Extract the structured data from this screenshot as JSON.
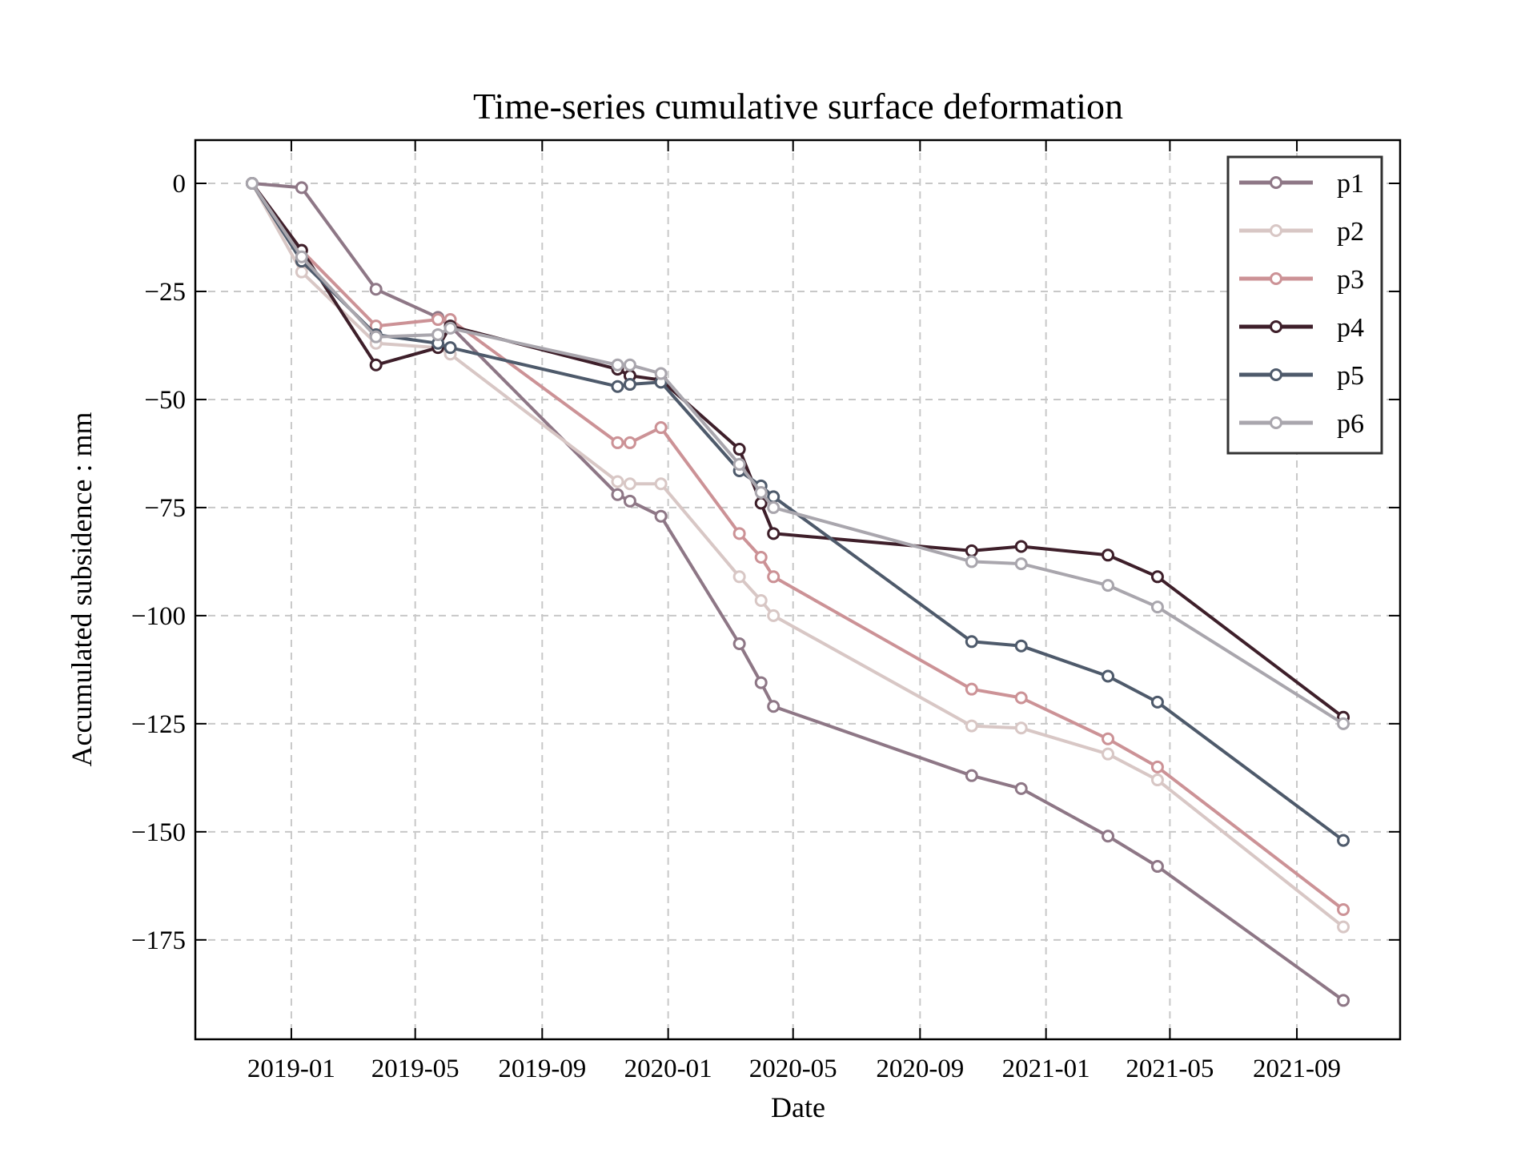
{
  "chart_data": {
    "type": "line",
    "title": "Time-series cumulative surface deformation",
    "xlabel": "Date",
    "ylabel": "Accumulated subsidence : mm",
    "x": [
      "2018-11-24",
      "2019-01-11",
      "2019-03-24",
      "2019-05-23",
      "2019-06-04",
      "2019-11-13",
      "2019-11-25",
      "2019-12-25",
      "2020-03-10",
      "2020-03-31",
      "2020-04-12",
      "2020-10-21",
      "2020-12-08",
      "2021-03-02",
      "2021-04-19",
      "2021-10-16"
    ],
    "xlim": [
      "2018-09-30",
      "2021-12-10"
    ],
    "xticks": [
      "2019-01",
      "2019-05",
      "2019-09",
      "2020-01",
      "2020-05",
      "2020-09",
      "2021-01",
      "2021-05",
      "2021-09"
    ],
    "ylim": [
      -198,
      10
    ],
    "yticks": [
      0,
      -25,
      -50,
      -75,
      -100,
      -125,
      -150,
      -175
    ],
    "ytick_labels": [
      "0",
      "−25",
      "−50",
      "−75",
      "−100",
      "−125",
      "−150",
      "−175"
    ],
    "grid": true,
    "legend_position": "top-right",
    "series": [
      {
        "name": "p1",
        "color": "#8e7786",
        "values": [
          0,
          -1,
          -24.5,
          -31,
          -33,
          -72,
          -73.5,
          -77,
          -106.5,
          -115.5,
          -121,
          -137,
          -140,
          -151,
          -158,
          -189
        ]
      },
      {
        "name": "p2",
        "color": "#d8c7c5",
        "values": [
          0,
          -20.5,
          -37,
          -38,
          -39.5,
          -69,
          -69.5,
          -69.5,
          -91,
          -96.5,
          -100,
          -125.5,
          -126,
          -132,
          -138,
          -172
        ]
      },
      {
        "name": "p3",
        "color": "#cc9296",
        "values": [
          0,
          -15.5,
          -33,
          -31.5,
          -31.5,
          -60,
          -60,
          -56.5,
          -81,
          -86.5,
          -91,
          -117,
          -119,
          -128.5,
          -135,
          -168
        ]
      },
      {
        "name": "p4",
        "color": "#3e1f2a",
        "values": [
          0,
          -15.5,
          -42,
          -38,
          -33,
          -43,
          -44.5,
          -45.5,
          -61.5,
          -74,
          -81,
          -85,
          -84,
          -86,
          -91,
          -123.5
        ]
      },
      {
        "name": "p5",
        "color": "#4e5a6b",
        "values": [
          0,
          -18,
          -35,
          -37,
          -38,
          -47,
          -46.5,
          -46,
          -66.5,
          -70,
          -72.5,
          -106,
          -107,
          -114,
          -120,
          -152
        ]
      },
      {
        "name": "p6",
        "color": "#a9a6ad",
        "values": [
          0,
          -17,
          -35.5,
          -35,
          -33.5,
          -42,
          -42,
          -44,
          -65,
          -71.5,
          -75,
          -87.5,
          -88,
          -93,
          -98,
          -125
        ]
      }
    ]
  }
}
